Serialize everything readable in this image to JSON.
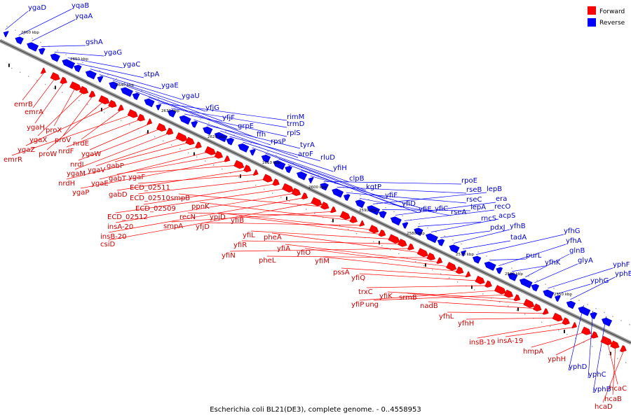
{
  "caption": "Escherichia coli BL21(DE3), complete genome. - 0..4558953",
  "legend": {
    "forward": {
      "label": "Forward",
      "color": "#ff0000"
    },
    "reverse": {
      "label": "Reverse",
      "color": "#0000ff"
    }
  },
  "ticks": [
    "2660 kbp",
    "2650 kbp",
    "2640 kbp",
    "2630 kbp",
    "2620 kbp",
    "2610 kbp",
    "2600 kbp",
    "2590 kbp",
    "2580 kbp",
    "2570 kbp",
    "2560 kbp",
    "2550 kbp"
  ],
  "forward_genes": [
    "emrB",
    "emrA",
    "ygaH",
    "proX",
    "ygaX",
    "proV",
    "proW",
    "ygaZ",
    "nrdE",
    "emrR",
    "nrdF",
    "ygaW",
    "nrdI",
    "ygaM",
    "ygaV",
    "gabP",
    "nrdH",
    "ygaE",
    "gabT",
    "ygaP",
    "ygaF",
    "gabD",
    "ECD_02511",
    "ECD_02510",
    "ECD_02509",
    "ECD_02512",
    "insA-20",
    "insB-20",
    "csiD",
    "smpB",
    "smpA",
    "recN",
    "ppnK",
    "yfjD",
    "ypjD",
    "yfiB",
    "yfiL",
    "yfiR",
    "yfiN",
    "pheA",
    "pheL",
    "yfiA",
    "yfiO",
    "yfiM",
    "pssA",
    "yfiQ",
    "trxC",
    "yfiP",
    "ung",
    "yfiK",
    "srmB",
    "nadB",
    "yfhL",
    "yfhH",
    "insB-19",
    "insA-19",
    "hmpA",
    "yphH",
    "hcaC",
    "hcaB",
    "hcaD"
  ],
  "reverse_genes": [
    "ygaD",
    "yqaB",
    "yqaA",
    "gshA",
    "ygaG",
    "ygaC",
    "stpA",
    "ygaE",
    "ygaU",
    "yfjG",
    "yfjF",
    "grpE",
    "ffh",
    "rimM",
    "trmD",
    "rplS",
    "rpsP",
    "tyrA",
    "aroF",
    "rluD",
    "yfiH",
    "clpB",
    "kgtP",
    "yfiF",
    "yfiD",
    "yfiE",
    "yfiC",
    "rpoE",
    "rseB",
    "rseC",
    "rseA",
    "lepB",
    "lepA",
    "era",
    "recO",
    "rncS",
    "acpS",
    "pdxJ",
    "yfhB",
    "tadA",
    "yfhG",
    "purL",
    "yfhA",
    "yfhK",
    "glnB",
    "glyA",
    "yphF",
    "yphG",
    "yphE",
    "yphD",
    "yphC",
    "yphB"
  ]
}
